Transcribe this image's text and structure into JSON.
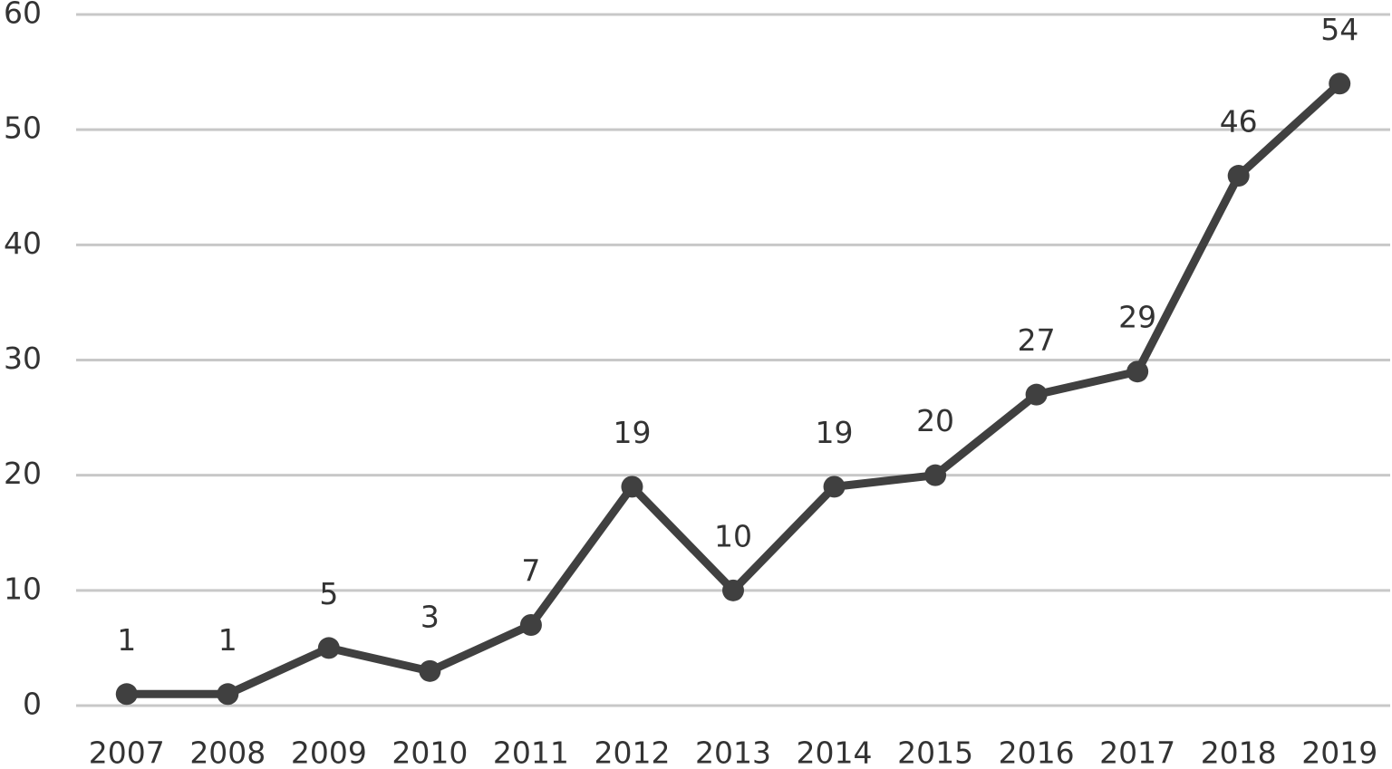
{
  "chart_data": {
    "type": "line",
    "categories": [
      "2007",
      "2008",
      "2009",
      "2010",
      "2011",
      "2012",
      "2013",
      "2014",
      "2015",
      "2016",
      "2017",
      "2018",
      "2019"
    ],
    "values": [
      1,
      1,
      5,
      3,
      7,
      19,
      10,
      19,
      20,
      27,
      29,
      46,
      54
    ],
    "color": "#404040",
    "ylim": [
      0,
      60
    ],
    "yticks": [
      0,
      10,
      20,
      30,
      40,
      50,
      60
    ],
    "grid": true,
    "data_labels": true
  }
}
